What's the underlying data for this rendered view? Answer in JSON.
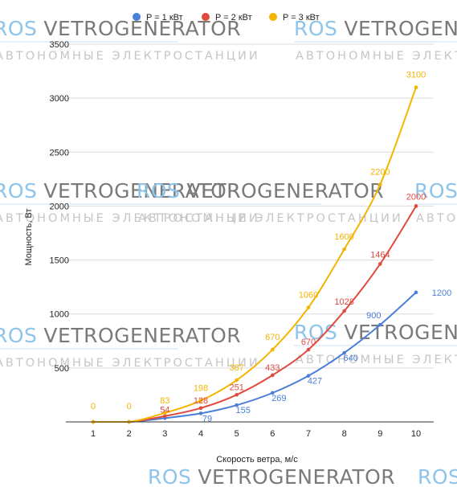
{
  "watermark": {
    "brand_ros": "ROS",
    "brand_main": "VETROGENERATOR",
    "tagline": "АВТОНОМНЫЕ ЭЛЕКТРОСТАНЦИИ"
  },
  "chart_data": {
    "type": "line",
    "title": "",
    "xlabel": "Скорость ветра, м/с",
    "ylabel": "Мощность, Вт",
    "x": [
      1,
      2,
      3,
      4,
      5,
      6,
      7,
      8,
      9,
      10
    ],
    "xlim": [
      1,
      10
    ],
    "ylim": [
      0,
      3500
    ],
    "yticks": [
      500,
      1000,
      1500,
      2000,
      2500,
      3000,
      3500
    ],
    "grid": true,
    "legend_position": "top",
    "series": [
      {
        "name": "P = 1 кВт",
        "color": "#4a7fd8",
        "values": [
          0,
          0,
          35,
          79,
          155,
          269,
          427,
          640,
          900,
          1200
        ]
      },
      {
        "name": "P = 2 кВт",
        "color": "#e04a3f",
        "values": [
          0,
          0,
          54,
          128,
          251,
          433,
          670,
          1028,
          1464,
          2000
        ]
      },
      {
        "name": "P = 3 кВт",
        "color": "#f4b400",
        "values": [
          0,
          0,
          83,
          198,
          387,
          670,
          1060,
          1600,
          2200,
          3100
        ]
      }
    ],
    "data_labels": [
      {
        "series": 0,
        "index": 4,
        "text": "79"
      },
      {
        "series": 0,
        "index": 5,
        "text": "155"
      },
      {
        "series": 0,
        "index": 6,
        "text": "269"
      },
      {
        "series": 0,
        "index": 7,
        "text": "427"
      },
      {
        "series": 0,
        "index": 8,
        "text": "640"
      },
      {
        "series": 0,
        "index": 9,
        "text": "900"
      },
      {
        "series": 0,
        "index": 10,
        "text": "1200"
      },
      {
        "series": 1,
        "index": 3,
        "text": "54"
      },
      {
        "series": 1,
        "index": 4,
        "text": "128"
      },
      {
        "series": 1,
        "index": 5,
        "text": "251"
      },
      {
        "series": 1,
        "index": 6,
        "text": "433"
      },
      {
        "series": 1,
        "index": 7,
        "text": "670"
      },
      {
        "series": 1,
        "index": 8,
        "text": "1028"
      },
      {
        "series": 1,
        "index": 9,
        "text": "1464"
      },
      {
        "series": 1,
        "index": 10,
        "text": "2000"
      },
      {
        "series": 2,
        "index": 1,
        "text": "0"
      },
      {
        "series": 2,
        "index": 2,
        "text": "0"
      },
      {
        "series": 2,
        "index": 3,
        "text": "83"
      },
      {
        "series": 2,
        "index": 4,
        "text": "198"
      },
      {
        "series": 2,
        "index": 5,
        "text": "387"
      },
      {
        "series": 2,
        "index": 6,
        "text": "670"
      },
      {
        "series": 2,
        "index": 7,
        "text": "1060"
      },
      {
        "series": 2,
        "index": 8,
        "text": "1600"
      },
      {
        "series": 2,
        "index": 9,
        "text": "2200"
      },
      {
        "series": 2,
        "index": 10,
        "text": "3100"
      }
    ]
  }
}
